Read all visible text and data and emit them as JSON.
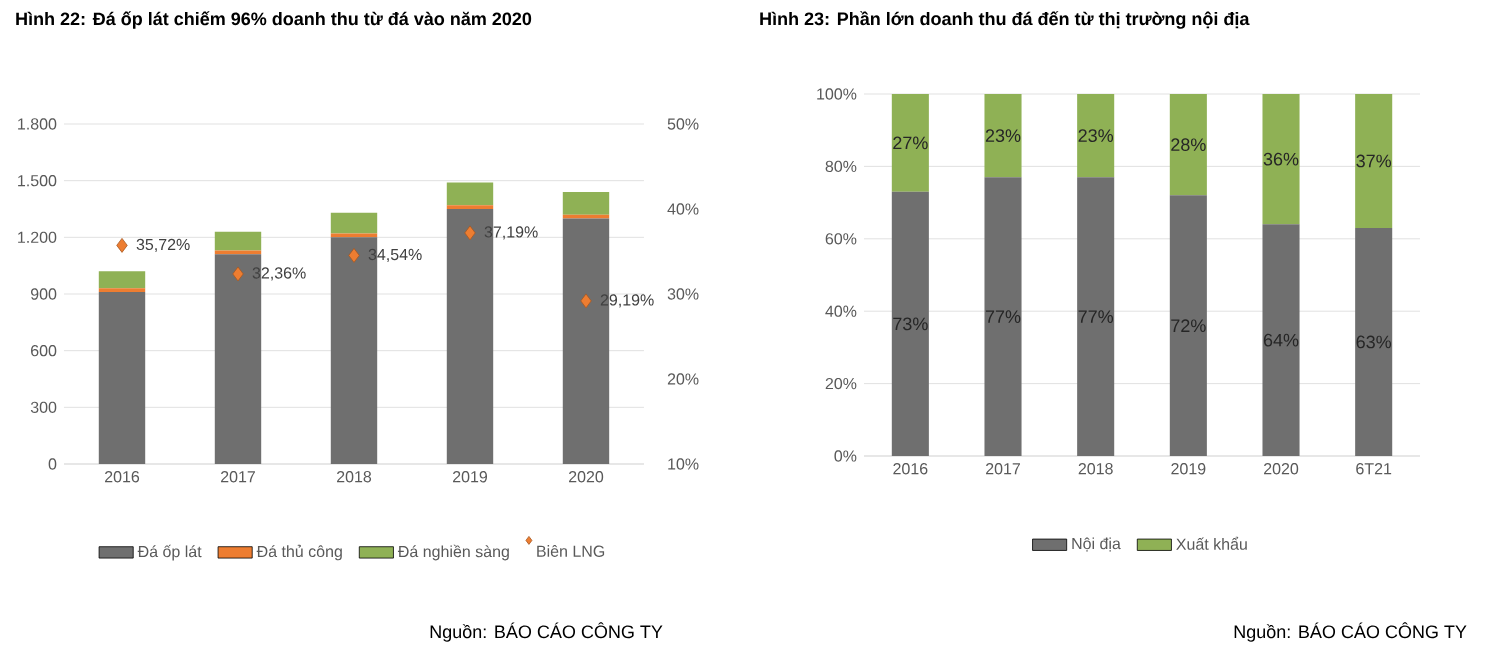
{
  "chart_data": [
    {
      "type": "bar",
      "title": "Hình 22: Đá ốp lát chiếm 96% doanh thu từ đá vào năm 2020",
      "categories": [
        "2016",
        "2017",
        "2018",
        "2019",
        "2020"
      ],
      "stacked": true,
      "grid": "y",
      "legend": "bottom",
      "ylim": [
        0,
        1800
      ],
      "yticks": [
        0,
        300,
        600,
        900,
        {
          "value": 1200,
          "label": "1.200"
        },
        {
          "value": 1500,
          "label": "1.500"
        },
        {
          "value": 1800,
          "label": "1.800"
        }
      ],
      "y2lim": [
        10,
        50
      ],
      "y2ticks": [
        {
          "value": 10,
          "label": "10%"
        },
        {
          "value": 20,
          "label": "20%"
        },
        {
          "value": 30,
          "label": "30%"
        },
        {
          "value": 40,
          "label": "40%"
        },
        {
          "value": 50,
          "label": "50%"
        }
      ],
      "series": [
        {
          "name": "Đá ốp lát",
          "color": "#6f6f6f",
          "values": [
            910,
            1110,
            1200,
            1350,
            1300
          ]
        },
        {
          "name": "Đá thủ công",
          "color": "#ed7d31",
          "values": [
            20,
            20,
            20,
            20,
            20
          ]
        },
        {
          "name": "Đá nghiền sàng",
          "color": "#8fb155",
          "values": [
            90,
            100,
            110,
            120,
            120
          ]
        },
        {
          "name": "Biên LNG",
          "type": "scatter",
          "axis": "y2",
          "marker": "diamond",
          "color": "#ed7d31",
          "values": [
            35.72,
            32.36,
            34.54,
            37.19,
            29.19
          ],
          "value_labels": [
            "35,72%",
            "32,36%",
            "34,54%",
            "37,19%",
            "29,19%"
          ]
        }
      ],
      "annotations": [
        "Nguồn: BÁO CÁO CÔNG TY"
      ]
    },
    {
      "type": "bar",
      "title": "Hình 23: Phần lớn doanh thu đá đến từ thị trường nội địa",
      "categories": [
        "2016",
        "2017",
        "2018",
        "2019",
        "2020",
        "6T21"
      ],
      "stacked": true,
      "grid": "y",
      "legend": "bottom",
      "ylim": [
        0,
        100
      ],
      "yticks": [
        {
          "value": 0,
          "label": "0%"
        },
        {
          "value": 20,
          "label": "20%"
        },
        {
          "value": 40,
          "label": "40%"
        },
        {
          "value": 60,
          "label": "60%"
        },
        {
          "value": 80,
          "label": "80%"
        },
        {
          "value": 100,
          "label": "100%"
        }
      ],
      "series": [
        {
          "name": "Nội địa",
          "color": "#6f6f6f",
          "values": [
            73,
            77,
            77,
            72,
            64,
            63
          ],
          "value_labels": [
            "73%",
            "77%",
            "77%",
            "72%",
            "64%",
            "63%"
          ]
        },
        {
          "name": "Xuất khẩu",
          "color": "#8fb155",
          "values": [
            27,
            23,
            23,
            28,
            36,
            37
          ],
          "value_labels": [
            "27%",
            "23%",
            "23%",
            "28%",
            "36%",
            "37%"
          ]
        }
      ],
      "annotations": [
        "Nguồn: BÁO CÁO CÔNG TY"
      ]
    }
  ]
}
